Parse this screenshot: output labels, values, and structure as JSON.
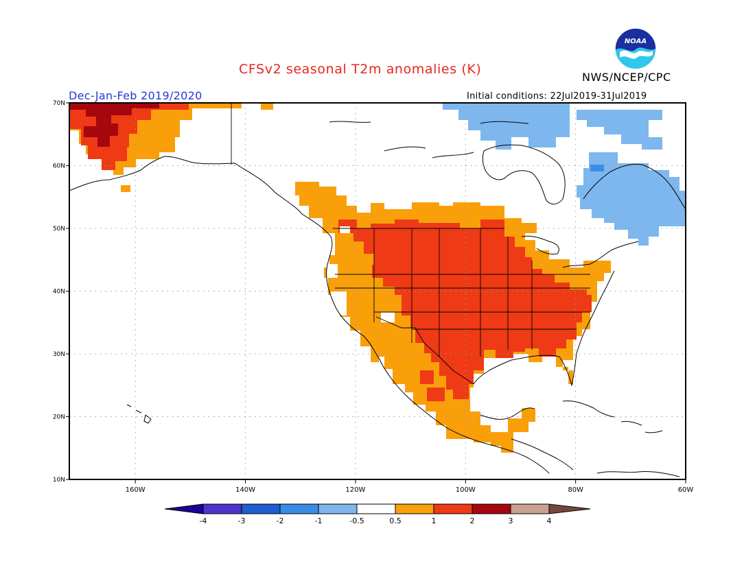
{
  "header": {
    "title": "CFSv2 seasonal T2m anomalies (K)",
    "agency": "NWS/NCEP/CPC",
    "period": "Dec-Jan-Feb 2019/2020",
    "initial_conditions": "Initial conditions: 22Jul2019-31Jul2019",
    "logo_text": "NOAA"
  },
  "map": {
    "lon_range": [
      -172,
      -60
    ],
    "lat_range": [
      10,
      70
    ],
    "lon_ticks": [
      {
        "value": -160,
        "label": "160W"
      },
      {
        "value": -140,
        "label": "140W"
      },
      {
        "value": -120,
        "label": "120W"
      },
      {
        "value": -100,
        "label": "100W"
      },
      {
        "value": -80,
        "label": "80W"
      },
      {
        "value": -60,
        "label": "60W"
      }
    ],
    "lat_ticks": [
      {
        "value": 10,
        "label": "10N"
      },
      {
        "value": 20,
        "label": "20N"
      },
      {
        "value": 30,
        "label": "30N"
      },
      {
        "value": 40,
        "label": "40N"
      },
      {
        "value": 50,
        "label": "50N"
      },
      {
        "value": 60,
        "label": "60N"
      },
      {
        "value": 70,
        "label": "70N"
      }
    ],
    "grid": "dotted"
  },
  "legend": {
    "levels": [
      "-4",
      "-3",
      "-2",
      "-1",
      "-0.5",
      "0.5",
      "1",
      "2",
      "3",
      "4"
    ],
    "colors": [
      "#1e0396",
      "#4b35cc",
      "#1f5fd0",
      "#3a8ce8",
      "#7db7ee",
      "#ffffff",
      "#f99f0a",
      "#ee3a15",
      "#a6070e",
      "#c8a190",
      "#74483a"
    ]
  },
  "anomaly_regions": [
    {
      "name": "contiguous-us-warm",
      "category": "1 to 2",
      "color": "#ee3a15"
    },
    {
      "name": "western-north-america-warm",
      "category": "0.5 to 1",
      "color": "#f99f0a"
    },
    {
      "name": "mexico-warm",
      "category": "0.5 to 1",
      "color": "#f99f0a"
    },
    {
      "name": "alaska-warm",
      "category": "0.5 to 3",
      "color": "#a6070e"
    },
    {
      "name": "quebec-labrador-cool",
      "category": "-1 to -0.5",
      "color": "#7db7ee"
    },
    {
      "name": "canadian-arctic-cool",
      "category": "-1 to -0.5",
      "color": "#7db7ee"
    }
  ]
}
